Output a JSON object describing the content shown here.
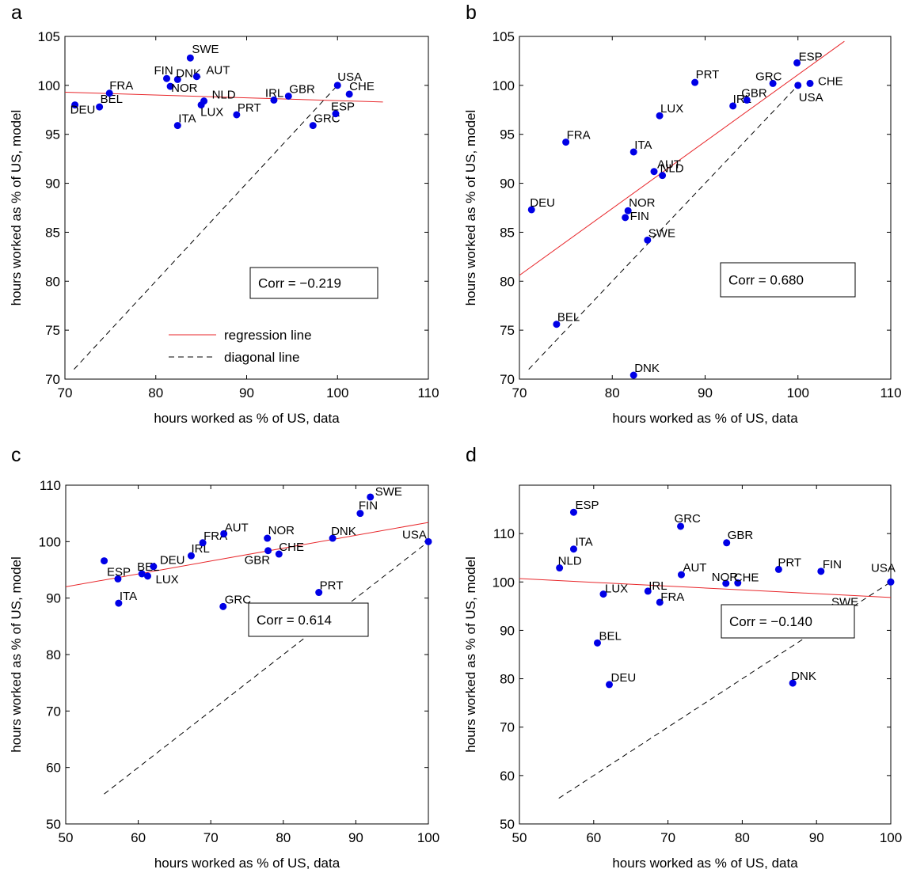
{
  "colors": {
    "regression": "#e8262a",
    "diagonal": "#000000",
    "points": "#0000e6",
    "axis": "#000000"
  },
  "legend_labels": {
    "regression": "regression line",
    "diagonal": "diagonal line"
  },
  "chart_data": [
    {
      "panel": "a",
      "type": "scatter",
      "xlabel": "hours worked as % of US, data",
      "ylabel": "hours worked as % of US, model",
      "xlim": [
        70,
        110
      ],
      "ylim": [
        70,
        105
      ],
      "xticks": [
        70,
        80,
        90,
        100,
        110
      ],
      "yticks": [
        70,
        75,
        80,
        85,
        90,
        95,
        100,
        105
      ],
      "corr_label": "Corr = −0.219",
      "legend": true,
      "legend_position": "bottom-center",
      "regression": {
        "x": [
          70,
          105
        ],
        "y": [
          99.3,
          98.3
        ]
      },
      "diagonal": {
        "x": [
          71,
          100
        ],
        "y": [
          71,
          100
        ]
      },
      "points": [
        {
          "label": "DEU",
          "x": 71.1,
          "y": 98.0
        },
        {
          "label": "BEL",
          "x": 73.8,
          "y": 97.8
        },
        {
          "label": "FRA",
          "x": 74.9,
          "y": 99.2
        },
        {
          "label": "FIN",
          "x": 81.2,
          "y": 100.7
        },
        {
          "label": "NOR",
          "x": 81.6,
          "y": 99.9
        },
        {
          "label": "DNK",
          "x": 82.4,
          "y": 100.6
        },
        {
          "label": "ITA",
          "x": 82.4,
          "y": 95.9
        },
        {
          "label": "SWE",
          "x": 83.8,
          "y": 102.8
        },
        {
          "label": "AUT",
          "x": 84.5,
          "y": 100.9
        },
        {
          "label": "NLD",
          "x": 85.3,
          "y": 98.4
        },
        {
          "label": "LUX",
          "x": 85.0,
          "y": 98.0
        },
        {
          "label": "PRT",
          "x": 88.9,
          "y": 97.0
        },
        {
          "label": "IRL",
          "x": 93.0,
          "y": 98.5
        },
        {
          "label": "GBR",
          "x": 94.6,
          "y": 98.9
        },
        {
          "label": "GRC",
          "x": 97.3,
          "y": 95.9
        },
        {
          "label": "USA",
          "x": 100.0,
          "y": 100.0
        },
        {
          "label": "ESP",
          "x": 99.8,
          "y": 97.1
        },
        {
          "label": "CHE",
          "x": 101.3,
          "y": 99.1
        }
      ]
    },
    {
      "panel": "b",
      "type": "scatter",
      "xlabel": "hours worked as % of US, data",
      "ylabel": "hours worked as % of US, model",
      "xlim": [
        70,
        110
      ],
      "ylim": [
        70,
        105
      ],
      "xticks": [
        70,
        80,
        90,
        100,
        110
      ],
      "yticks": [
        70,
        75,
        80,
        85,
        90,
        95,
        100,
        105
      ],
      "corr_label": "Corr =  0.680",
      "legend": false,
      "regression": {
        "x": [
          70,
          105
        ],
        "y": [
          80.6,
          104.5
        ]
      },
      "diagonal": {
        "x": [
          71,
          100
        ],
        "y": [
          71,
          100
        ]
      },
      "points": [
        {
          "label": "DEU",
          "x": 71.3,
          "y": 87.3
        },
        {
          "label": "FRA",
          "x": 75.0,
          "y": 94.2
        },
        {
          "label": "BEL",
          "x": 74.0,
          "y": 75.6
        },
        {
          "label": "FIN",
          "x": 81.4,
          "y": 86.5
        },
        {
          "label": "NOR",
          "x": 81.7,
          "y": 87.2
        },
        {
          "label": "DNK",
          "x": 82.3,
          "y": 70.4
        },
        {
          "label": "ITA",
          "x": 82.3,
          "y": 93.2
        },
        {
          "label": "SWE",
          "x": 83.8,
          "y": 84.2
        },
        {
          "label": "AUT",
          "x": 84.5,
          "y": 91.2
        },
        {
          "label": "NLD",
          "x": 85.4,
          "y": 90.8
        },
        {
          "label": "LUX",
          "x": 85.1,
          "y": 96.9
        },
        {
          "label": "PRT",
          "x": 88.9,
          "y": 100.3
        },
        {
          "label": "IRL",
          "x": 93.0,
          "y": 97.9
        },
        {
          "label": "GBR",
          "x": 94.5,
          "y": 98.5
        },
        {
          "label": "GRC",
          "x": 97.3,
          "y": 100.2
        },
        {
          "label": "ESP",
          "x": 99.9,
          "y": 102.3
        },
        {
          "label": "USA",
          "x": 100.0,
          "y": 100.0
        },
        {
          "label": "CHE",
          "x": 101.3,
          "y": 100.2
        }
      ]
    },
    {
      "panel": "c",
      "type": "scatter",
      "xlabel": "hours worked as % of US, data",
      "ylabel": "hours worked as % of US, model",
      "xlim": [
        50,
        100
      ],
      "ylim": [
        50,
        110
      ],
      "xticks": [
        50,
        60,
        70,
        80,
        90,
        100
      ],
      "yticks": [
        50,
        60,
        70,
        80,
        90,
        100,
        110
      ],
      "corr_label": "Corr =  0.614",
      "legend": false,
      "regression": {
        "x": [
          50,
          100
        ],
        "y": [
          92.0,
          103.4
        ]
      },
      "diagonal": {
        "x": [
          55.3,
          100
        ],
        "y": [
          55.3,
          100
        ]
      },
      "points": [
        {
          "label": "",
          "x": 55.3,
          "y": 96.6
        },
        {
          "label": "ESP",
          "x": 57.2,
          "y": 93.4
        },
        {
          "label": "ITA",
          "x": 57.3,
          "y": 89.1
        },
        {
          "label": "BEL",
          "x": 60.5,
          "y": 94.3
        },
        {
          "label": "LUX",
          "x": 61.3,
          "y": 93.9
        },
        {
          "label": "DEU",
          "x": 62.1,
          "y": 95.6
        },
        {
          "label": "IRL",
          "x": 67.3,
          "y": 97.5
        },
        {
          "label": "FRA",
          "x": 68.9,
          "y": 99.8
        },
        {
          "label": "GRC",
          "x": 71.7,
          "y": 88.5
        },
        {
          "label": "AUT",
          "x": 71.8,
          "y": 101.4
        },
        {
          "label": "NOR",
          "x": 77.8,
          "y": 100.6
        },
        {
          "label": "GBR",
          "x": 77.9,
          "y": 98.4
        },
        {
          "label": "CHE",
          "x": 79.4,
          "y": 97.8
        },
        {
          "label": "PRT",
          "x": 84.9,
          "y": 91.0
        },
        {
          "label": "DNK",
          "x": 86.8,
          "y": 100.6
        },
        {
          "label": "FIN",
          "x": 90.6,
          "y": 105.0
        },
        {
          "label": "SWE",
          "x": 92.0,
          "y": 107.9
        },
        {
          "label": "USA",
          "x": 100.0,
          "y": 100.0
        }
      ]
    },
    {
      "panel": "d",
      "type": "scatter",
      "xlabel": "hours worked as % of US, data",
      "ylabel": "hours worked as % of US, model",
      "xlim": [
        50,
        100
      ],
      "ylim": [
        50,
        120
      ],
      "xticks": [
        50,
        60,
        70,
        80,
        90,
        100
      ],
      "yticks": [
        50,
        60,
        70,
        80,
        90,
        100,
        110
      ],
      "corr_label": "Corr = −0.140",
      "legend": false,
      "regression": {
        "x": [
          50,
          100
        ],
        "y": [
          100.7,
          96.8
        ]
      },
      "diagonal": {
        "x": [
          55.3,
          100
        ],
        "y": [
          55.3,
          100
        ]
      },
      "points": [
        {
          "label": "NLD",
          "x": 55.4,
          "y": 102.9
        },
        {
          "label": "ESP",
          "x": 57.3,
          "y": 114.4
        },
        {
          "label": "ITA",
          "x": 57.3,
          "y": 106.8
        },
        {
          "label": "BEL",
          "x": 60.5,
          "y": 87.4
        },
        {
          "label": "LUX",
          "x": 61.3,
          "y": 97.5
        },
        {
          "label": "DEU",
          "x": 62.1,
          "y": 78.8
        },
        {
          "label": "IRL",
          "x": 67.3,
          "y": 98.1
        },
        {
          "label": "FRA",
          "x": 68.9,
          "y": 95.8
        },
        {
          "label": "GRC",
          "x": 71.7,
          "y": 111.5
        },
        {
          "label": "AUT",
          "x": 71.8,
          "y": 101.5
        },
        {
          "label": "NOR",
          "x": 77.8,
          "y": 99.7
        },
        {
          "label": "GBR",
          "x": 77.9,
          "y": 108.1
        },
        {
          "label": "CHE",
          "x": 79.4,
          "y": 99.8
        },
        {
          "label": "PRT",
          "x": 84.9,
          "y": 102.6
        },
        {
          "label": "DNK",
          "x": 86.8,
          "y": 79.1
        },
        {
          "label": "FIN",
          "x": 90.6,
          "y": 102.2
        },
        {
          "label": "SWE",
          "x": 92.0,
          "y": 94.4
        },
        {
          "label": "USA",
          "x": 100.0,
          "y": 100.0
        }
      ]
    }
  ]
}
